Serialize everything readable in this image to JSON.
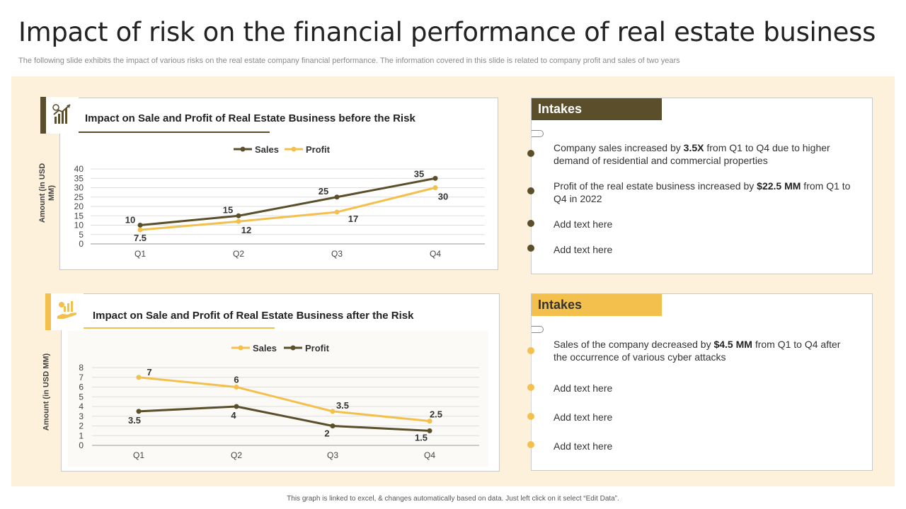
{
  "title": "Impact of risk on the financial performance of real estate business",
  "subtitle": "The following slide exhibits the impact of various risks on the real estate company financial performance. The information covered in this slide is related to company profit and sales of two years",
  "footer": "This graph is linked to excel, & changes automatically based on data. Just left click on it select “Edit Data”.",
  "colors": {
    "dark": "#5b4e2a",
    "gold": "#f4c04d",
    "panel_bg": "#fdf1dc"
  },
  "chart_data": [
    {
      "type": "line",
      "title": "Impact on Sale and Profit of Real Estate Business before the Risk",
      "ylabel": "Amount (in USD MM)",
      "xlabel": "",
      "categories": [
        "Q1",
        "Q2",
        "Q3",
        "Q4"
      ],
      "yticks": [
        "0",
        "5",
        "10",
        "15",
        "20",
        "25",
        "30",
        "35",
        "40"
      ],
      "ylim": [
        0,
        40
      ],
      "grid": true,
      "legend_position": "top",
      "series": [
        {
          "name": "Sales",
          "color": "#5b4e2a",
          "values": [
            10,
            15,
            25,
            35
          ],
          "labels": [
            "10",
            "15",
            "25",
            "35"
          ]
        },
        {
          "name": "Profit",
          "color": "#f4c04d",
          "values": [
            7.5,
            12,
            17,
            30
          ],
          "labels": [
            "7.5",
            "12",
            "17",
            "30"
          ]
        }
      ]
    },
    {
      "type": "line",
      "title": "Impact on Sale and Profit of Real Estate Business after the Risk",
      "ylabel": "Amount (in USD MM)",
      "xlabel": "",
      "categories": [
        "Q1",
        "Q2",
        "Q3",
        "Q4"
      ],
      "yticks": [
        "0",
        "1",
        "2",
        "3",
        "4",
        "5",
        "6",
        "7",
        "8"
      ],
      "ylim": [
        0,
        8
      ],
      "grid": true,
      "legend_position": "top",
      "series": [
        {
          "name": "Sales",
          "color": "#f4c04d",
          "values": [
            7,
            6,
            3.5,
            2.5
          ],
          "labels": [
            "7",
            "6",
            "3.5",
            "2.5"
          ]
        },
        {
          "name": "Profit",
          "color": "#5b4e2a",
          "values": [
            3.5,
            4,
            2,
            1.5
          ],
          "labels": [
            "3.5",
            "4",
            "2",
            "1.5"
          ]
        }
      ]
    }
  ],
  "intakes": [
    {
      "heading": "Intakes",
      "points": [
        {
          "pre": "Company sales increased by ",
          "bold": "3.5X",
          "post": " from Q1 to Q4 due to higher demand of residential and commercial properties"
        },
        {
          "pre": "Profit of the real estate business increased by ",
          "bold": "$22.5 MM",
          "post": " from Q1 to Q4 in 2022"
        },
        {
          "pre": "Add text here",
          "bold": "",
          "post": ""
        },
        {
          "pre": "Add text here",
          "bold": "",
          "post": ""
        }
      ]
    },
    {
      "heading": "Intakes",
      "points": [
        {
          "pre": "Sales of the company decreased by ",
          "bold": "$4.5 MM",
          "post": " from Q1 to Q4 after the occurrence of various cyber attacks"
        },
        {
          "pre": "Add text here",
          "bold": "",
          "post": ""
        },
        {
          "pre": "Add text here",
          "bold": "",
          "post": ""
        },
        {
          "pre": "Add text here",
          "bold": "",
          "post": ""
        }
      ]
    }
  ]
}
